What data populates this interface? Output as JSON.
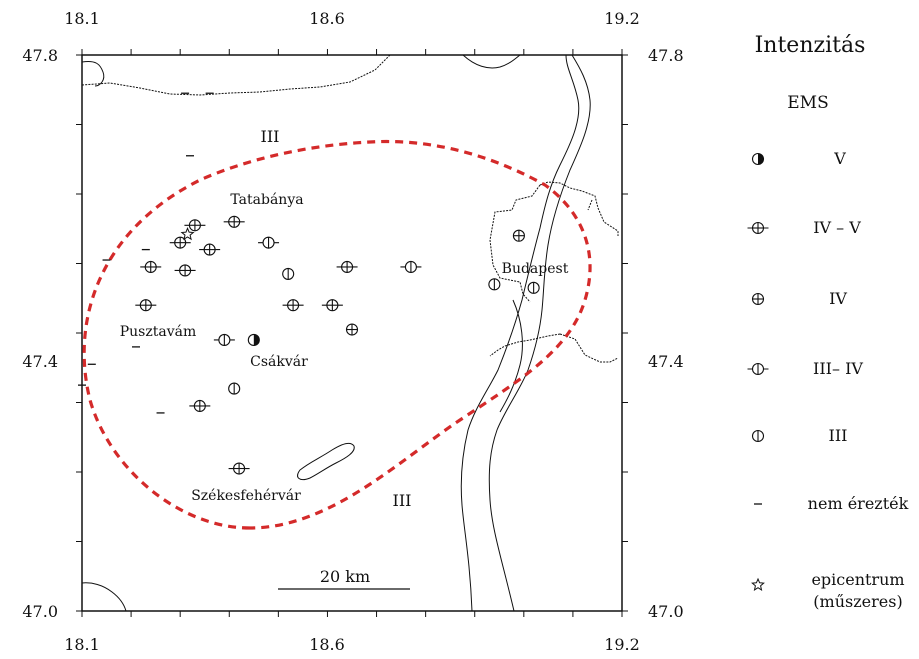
{
  "map": {
    "lon_min": 18.1,
    "lon_max": 19.2,
    "lat_min": 47.0,
    "lat_max": 47.8,
    "top_ticks": [
      "18.1",
      "18.6",
      "19.2"
    ],
    "bottom_ticks": [
      "18.1",
      "18.6",
      "19.2"
    ],
    "left_ticks": [
      "47.8",
      "47.4",
      "47.0"
    ],
    "right_ticks": [
      "47.8",
      "47.4",
      "47.0"
    ],
    "isoseismal_labels": [
      "III",
      "III"
    ],
    "towns": [
      "Tatabánya",
      "Budapest",
      "Pusztavám",
      "Csákvár",
      "Székesfehérvár"
    ],
    "scale_bar": "20  km",
    "isoseismal_color": "#d42a2a"
  },
  "legend": {
    "title": "Intenzitás",
    "subtitle": "EMS",
    "items": [
      {
        "label": "V",
        "symbol": "half"
      },
      {
        "label": "IV – V",
        "symbol": "cross-bar"
      },
      {
        "label": "IV",
        "symbol": "cross"
      },
      {
        "label": "III– IV",
        "symbol": "vbar-bar"
      },
      {
        "label": "III",
        "symbol": "vbar"
      },
      {
        "label": "nem érezték",
        "symbol": "dash"
      },
      {
        "label": "epicentrum",
        "label2": "(műszeres)",
        "symbol": "star"
      }
    ]
  },
  "observations": [
    {
      "lon": 18.45,
      "lat": 47.39,
      "symbol": "half"
    },
    {
      "lon": 18.33,
      "lat": 47.555,
      "symbol": "cross-bar"
    },
    {
      "lon": 18.41,
      "lat": 47.56,
      "symbol": "cross-bar"
    },
    {
      "lon": 18.3,
      "lat": 47.53,
      "symbol": "cross-bar"
    },
    {
      "lon": 18.36,
      "lat": 47.52,
      "symbol": "cross-bar"
    },
    {
      "lon": 18.24,
      "lat": 47.495,
      "symbol": "cross-bar"
    },
    {
      "lon": 18.31,
      "lat": 47.49,
      "symbol": "cross-bar"
    },
    {
      "lon": 18.64,
      "lat": 47.495,
      "symbol": "cross-bar"
    },
    {
      "lon": 18.23,
      "lat": 47.44,
      "symbol": "cross-bar"
    },
    {
      "lon": 18.53,
      "lat": 47.44,
      "symbol": "cross-bar"
    },
    {
      "lon": 18.61,
      "lat": 47.44,
      "symbol": "cross-bar"
    },
    {
      "lon": 18.34,
      "lat": 47.295,
      "symbol": "cross-bar"
    },
    {
      "lon": 18.42,
      "lat": 47.205,
      "symbol": "cross-bar"
    },
    {
      "lon": 18.99,
      "lat": 47.54,
      "symbol": "cross"
    },
    {
      "lon": 18.65,
      "lat": 47.405,
      "symbol": "cross"
    },
    {
      "lon": 18.48,
      "lat": 47.53,
      "symbol": "vbar-bar"
    },
    {
      "lon": 18.77,
      "lat": 47.495,
      "symbol": "vbar-bar"
    },
    {
      "lon": 18.39,
      "lat": 47.39,
      "symbol": "vbar-bar"
    },
    {
      "lon": 18.52,
      "lat": 47.485,
      "symbol": "vbar"
    },
    {
      "lon": 18.94,
      "lat": 47.47,
      "symbol": "vbar"
    },
    {
      "lon": 19.02,
      "lat": 47.465,
      "symbol": "vbar"
    },
    {
      "lon": 18.41,
      "lat": 47.32,
      "symbol": "vbar"
    },
    {
      "lon": 18.315,
      "lat": 47.542,
      "symbol": "star"
    },
    {
      "lon": 18.31,
      "lat": 47.745,
      "symbol": "dash"
    },
    {
      "lon": 18.36,
      "lat": 47.745,
      "symbol": "dash"
    },
    {
      "lon": 18.32,
      "lat": 47.655,
      "symbol": "dash"
    },
    {
      "lon": 18.23,
      "lat": 47.52,
      "symbol": "dash"
    },
    {
      "lon": 18.15,
      "lat": 47.505,
      "symbol": "dash"
    },
    {
      "lon": 18.21,
      "lat": 47.38,
      "symbol": "dash"
    },
    {
      "lon": 18.12,
      "lat": 47.355,
      "symbol": "dash"
    },
    {
      "lon": 18.26,
      "lat": 47.285,
      "symbol": "dash"
    },
    {
      "lon": 18.1,
      "lat": 47.325,
      "symbol": "dash"
    }
  ]
}
